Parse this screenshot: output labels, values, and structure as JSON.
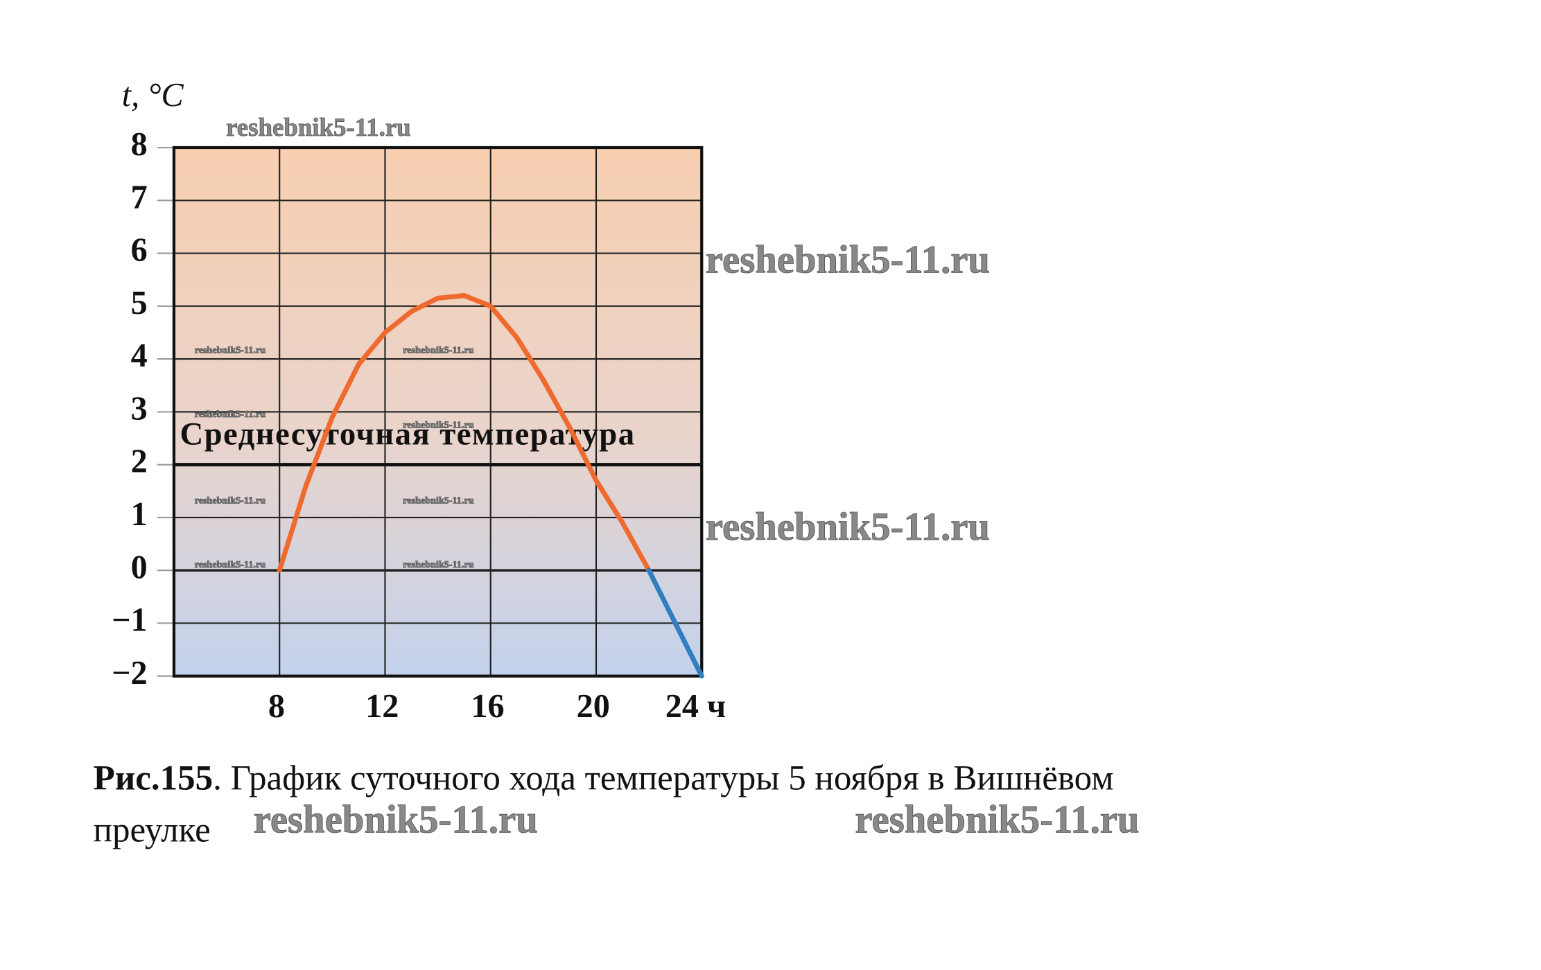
{
  "chart_data": {
    "type": "line",
    "y_label": "t, °C",
    "x": [
      8,
      9,
      10,
      11,
      12,
      13,
      14,
      15,
      16,
      17,
      18,
      19,
      20,
      21,
      22,
      23,
      24
    ],
    "series": [
      {
        "color": "#ee6a2e",
        "values": [
          0,
          1.6,
          2.9,
          3.9,
          4.5,
          4.9,
          5.15,
          5.2,
          5.0,
          4.4,
          3.6,
          2.7,
          1.7,
          0.9,
          0,
          null,
          null
        ]
      },
      {
        "color": "#2f7fc1",
        "values": [
          null,
          null,
          null,
          null,
          null,
          null,
          null,
          null,
          null,
          null,
          null,
          null,
          null,
          null,
          0,
          -1,
          -2
        ]
      }
    ],
    "xlim": [
      4,
      24
    ],
    "xticks": [
      8,
      12,
      16,
      20,
      {
        "value": 24,
        "label": "24 ч"
      }
    ],
    "ylim": [
      -2,
      8
    ],
    "yticks": [
      {
        "value": -2,
        "label": "−2"
      },
      {
        "value": -1,
        "label": "−1"
      },
      0,
      1,
      2,
      3,
      4,
      5,
      6,
      7,
      8
    ],
    "grid": true,
    "reference_line": {
      "value": 2,
      "label": "Среднесуточная температура"
    }
  },
  "caption": {
    "label": "Рис.155",
    "text": ". График суточного хода температуры 5 ноября в Вишнёвом",
    "text2": "преулке"
  },
  "watermark": "reshebnik5-11.ru"
}
